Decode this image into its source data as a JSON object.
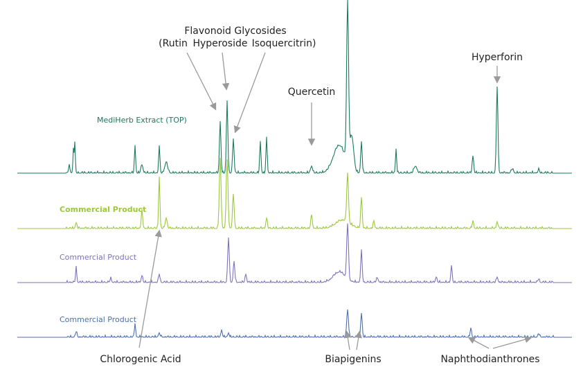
{
  "title": {
    "line1": "Flavonoid Glycosides",
    "rutin": "(Rutin",
    "hyperoside": "Hyperoside",
    "isoquercitrin": "Isoquercitrin)"
  },
  "annotations": {
    "quercetin": "Quercetin",
    "hyperforin": "Hyperforin",
    "chlorogenic": "Chlorogenic Acid",
    "biapigenins": "Biapigenins",
    "naphtho": "Naphthodianthrones"
  },
  "traces": [
    {
      "label": "MediHerb Extract (TOP)"
    },
    {
      "label": "Commercial Product"
    },
    {
      "label": "Commercial Product"
    },
    {
      "label": "Commercial Product"
    }
  ]
}
